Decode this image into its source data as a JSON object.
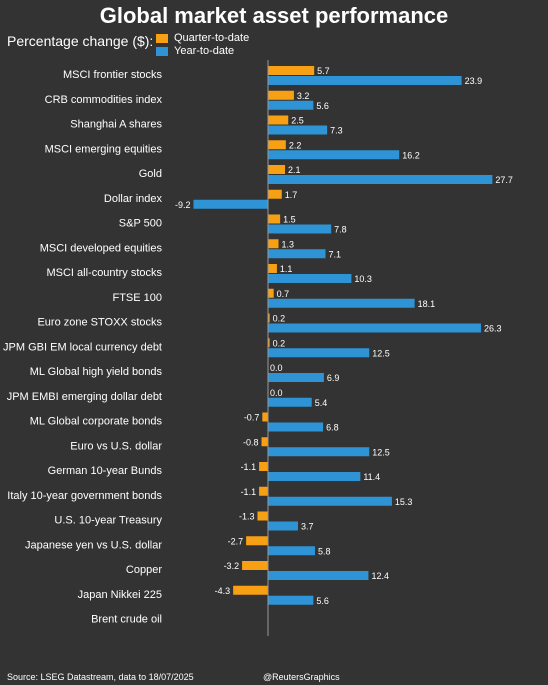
{
  "header": {
    "title": "Global market asset performance",
    "subtitle": "Percentage change ($):"
  },
  "colors": {
    "background": "#333333",
    "quarter_to_date": "#F7A014",
    "year_to_date": "#2E94D6",
    "axis": "#999999"
  },
  "footer": {
    "source": "Source: LSEG Datastream, data to 18/07/2025",
    "credit": "@ReutersGraphics"
  },
  "chart_data": {
    "type": "bar",
    "orientation": "horizontal",
    "title": "Global market asset performance",
    "subtitle": "Percentage change ($):",
    "legend_position": "top-left",
    "grid": false,
    "xlim": [
      -9.5,
      28.5
    ],
    "categories": [
      "MSCI frontier stocks",
      "CRB commodities index",
      "Shanghai A shares",
      "MSCI emerging equities",
      "Gold",
      "Dollar index",
      "S&P 500",
      "MSCI developed equities",
      "MSCI all-country stocks",
      "FTSE 100",
      "Euro zone STOXX stocks",
      "JPM GBI EM local currency debt",
      "ML Global high yield bonds",
      "JPM EMBI emerging dollar debt",
      "ML Global corporate bonds",
      "Euro vs U.S. dollar",
      "German 10-year Bunds",
      "Italy 10-year government bonds",
      "U.S. 10-year Treasury",
      "Japanese yen vs U.S. dollar",
      "Copper",
      "Japan Nikkei 225",
      "Brent crude oil"
    ],
    "series": [
      {
        "name": "Quarter-to-date",
        "values": [
          5.7,
          3.2,
          2.5,
          2.2,
          2.1,
          1.7,
          1.5,
          1.3,
          1.1,
          0.7,
          0.2,
          0.2,
          0.0,
          0.0,
          -0.7,
          -0.8,
          -1.1,
          -1.1,
          -1.3,
          -2.7,
          -3.2,
          -4.3,
          null
        ],
        "labels": [
          "5.7",
          "3.2",
          "2.5",
          "2.2",
          "2.1",
          "1.7",
          "1.5",
          "1.3",
          "1.1",
          "0.7",
          "0.2",
          "0.2",
          "0.0",
          "0.0",
          "-0.7",
          "-0.8",
          "-1.1",
          "-1.1",
          "-1.3",
          "-2.7",
          "-3.2",
          "-4.3",
          ""
        ]
      },
      {
        "name": "Year-to-date",
        "values": [
          23.9,
          5.6,
          7.3,
          16.2,
          27.7,
          -9.2,
          7.8,
          7.1,
          10.3,
          18.1,
          26.3,
          12.5,
          6.9,
          5.4,
          6.8,
          12.5,
          11.4,
          15.3,
          3.7,
          5.8,
          12.4,
          5.6,
          null
        ],
        "labels": [
          "23.9",
          "5.6",
          "7.3",
          "16.2",
          "27.7",
          "-9.2",
          "7.8",
          "7.1",
          "10.3",
          "18.1",
          "26.3",
          "12.5",
          "6.9",
          "5.4",
          "6.8",
          "12.5",
          "11.4",
          "15.3",
          "3.7",
          "5.8",
          "12.4",
          "5.6",
          ""
        ]
      }
    ]
  }
}
